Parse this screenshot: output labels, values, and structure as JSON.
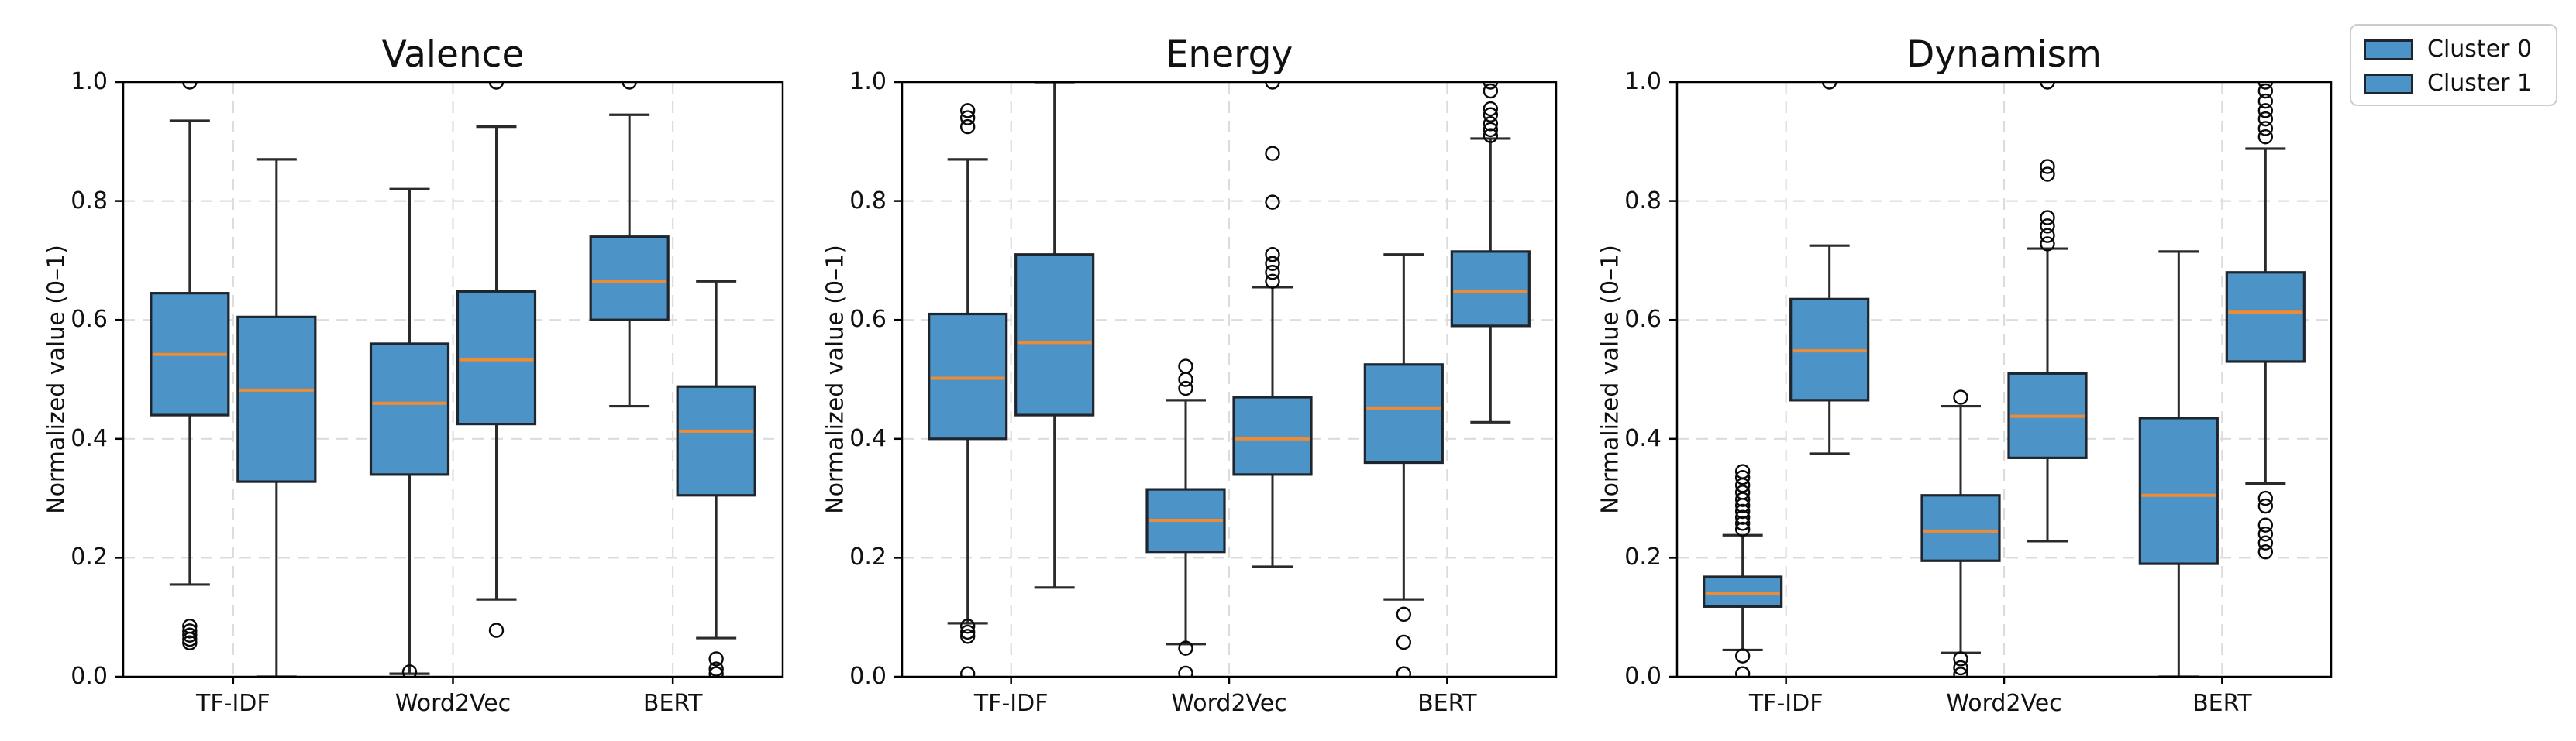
{
  "figure": {
    "ylabel": "Normalized value (0–1)",
    "ytick_labels": [
      "0.0",
      "0.2",
      "0.4",
      "0.6",
      "0.8",
      "1.0"
    ],
    "yticks": [
      0.0,
      0.2,
      0.4,
      0.6,
      0.8,
      1.0
    ],
    "grid_ticks": [
      0.2,
      0.4,
      0.6,
      0.8
    ]
  },
  "legend": {
    "items": [
      {
        "label": "Cluster 0",
        "color": "#4c93c8"
      },
      {
        "label": "Cluster 1",
        "color": "#4c93c8"
      }
    ]
  },
  "colors": {
    "box_fill": "#4c93c8",
    "box_edge": "#1f252d",
    "median": "#ef8c33",
    "whisker": "#2a2a2a",
    "outlier": "#0a0a0a",
    "grid": "#dcdcdc",
    "spine": "#000000",
    "tick": "#000000"
  },
  "chart_data": [
    {
      "type": "boxplot",
      "title": "Valence",
      "xlabel": "",
      "ylabel": "Normalized value (0–1)",
      "ylim": [
        0,
        1
      ],
      "grid": true,
      "categories": [
        "TF-IDF",
        "Word2Vec",
        "BERT"
      ],
      "series": [
        {
          "name": "Cluster 0",
          "boxes": [
            {
              "whislo": 0.155,
              "q1": 0.44,
              "med": 0.542,
              "q3": 0.645,
              "whishi": 0.935,
              "outliers": [
                1.0,
                0.085,
                0.077,
                0.07,
                0.063,
                0.057
              ]
            },
            {
              "whislo": 0.005,
              "q1": 0.34,
              "med": 0.46,
              "q3": 0.56,
              "whishi": 0.82,
              "outliers": [
                0.008
              ]
            },
            {
              "whislo": 0.455,
              "q1": 0.6,
              "med": 0.665,
              "q3": 0.74,
              "whishi": 0.945,
              "outliers": [
                1.0
              ]
            }
          ]
        },
        {
          "name": "Cluster 1",
          "boxes": [
            {
              "whislo": 0.0,
              "q1": 0.328,
              "med": 0.482,
              "q3": 0.605,
              "whishi": 0.87,
              "outliers": []
            },
            {
              "whislo": 0.13,
              "q1": 0.425,
              "med": 0.533,
              "q3": 0.648,
              "whishi": 0.925,
              "outliers": [
                1.0,
                0.078
              ]
            },
            {
              "whislo": 0.065,
              "q1": 0.305,
              "med": 0.413,
              "q3": 0.488,
              "whishi": 0.665,
              "outliers": [
                0.03,
                0.013,
                0.005
              ]
            }
          ]
        }
      ]
    },
    {
      "type": "boxplot",
      "title": "Energy",
      "xlabel": "",
      "ylabel": "Normalized value (0–1)",
      "ylim": [
        0,
        1
      ],
      "grid": true,
      "categories": [
        "TF-IDF",
        "Word2Vec",
        "BERT"
      ],
      "series": [
        {
          "name": "Cluster 0",
          "boxes": [
            {
              "whislo": 0.09,
              "q1": 0.4,
              "med": 0.502,
              "q3": 0.61,
              "whishi": 0.87,
              "outliers": [
                0.952,
                0.94,
                0.925,
                0.085,
                0.075,
                0.068,
                0.005
              ]
            },
            {
              "whislo": 0.055,
              "q1": 0.21,
              "med": 0.263,
              "q3": 0.315,
              "whishi": 0.465,
              "outliers": [
                0.522,
                0.5,
                0.485,
                0.048,
                0.006
              ]
            },
            {
              "whislo": 0.13,
              "q1": 0.36,
              "med": 0.452,
              "q3": 0.525,
              "whishi": 0.71,
              "outliers": [
                0.105,
                0.058,
                0.005
              ]
            }
          ]
        },
        {
          "name": "Cluster 1",
          "boxes": [
            {
              "whislo": 0.15,
              "q1": 0.44,
              "med": 0.562,
              "q3": 0.71,
              "whishi": 1.0,
              "outliers": []
            },
            {
              "whislo": 0.185,
              "q1": 0.34,
              "med": 0.4,
              "q3": 0.47,
              "whishi": 0.655,
              "outliers": [
                1.0,
                0.88,
                0.798,
                0.71,
                0.695,
                0.68,
                0.665
              ]
            },
            {
              "whislo": 0.428,
              "q1": 0.59,
              "med": 0.648,
              "q3": 0.715,
              "whishi": 0.905,
              "outliers": [
                1.0,
                0.985,
                0.955,
                0.945,
                0.93,
                0.92,
                0.91
              ]
            }
          ]
        }
      ]
    },
    {
      "type": "boxplot",
      "title": "Dynamism",
      "xlabel": "",
      "ylabel": "Normalized value (0–1)",
      "ylim": [
        0,
        1
      ],
      "grid": true,
      "categories": [
        "TF-IDF",
        "Word2Vec",
        "BERT"
      ],
      "series": [
        {
          "name": "Cluster 0",
          "boxes": [
            {
              "whislo": 0.045,
              "q1": 0.118,
              "med": 0.14,
              "q3": 0.168,
              "whishi": 0.238,
              "outliers": [
                0.345,
                0.335,
                0.322,
                0.31,
                0.298,
                0.288,
                0.278,
                0.268,
                0.258,
                0.248,
                0.035,
                0.005
              ]
            },
            {
              "whislo": 0.04,
              "q1": 0.195,
              "med": 0.245,
              "q3": 0.305,
              "whishi": 0.455,
              "outliers": [
                0.47,
                0.03,
                0.015,
                0.004
              ]
            },
            {
              "whislo": 0.0,
              "q1": 0.19,
              "med": 0.305,
              "q3": 0.435,
              "whishi": 0.715,
              "outliers": []
            }
          ]
        },
        {
          "name": "Cluster 1",
          "boxes": [
            {
              "whislo": 0.375,
              "q1": 0.465,
              "med": 0.548,
              "q3": 0.635,
              "whishi": 0.725,
              "outliers": [
                1.0
              ]
            },
            {
              "whislo": 0.228,
              "q1": 0.368,
              "med": 0.438,
              "q3": 0.51,
              "whishi": 0.72,
              "outliers": [
                1.0,
                0.858,
                0.845,
                0.772,
                0.758,
                0.742,
                0.728
              ]
            },
            {
              "whislo": 0.325,
              "q1": 0.53,
              "med": 0.613,
              "q3": 0.68,
              "whishi": 0.888,
              "outliers": [
                1.0,
                0.985,
                0.968,
                0.952,
                0.938,
                0.922,
                0.908,
                0.3,
                0.287,
                0.255,
                0.24,
                0.225,
                0.21
              ]
            }
          ]
        }
      ]
    }
  ]
}
